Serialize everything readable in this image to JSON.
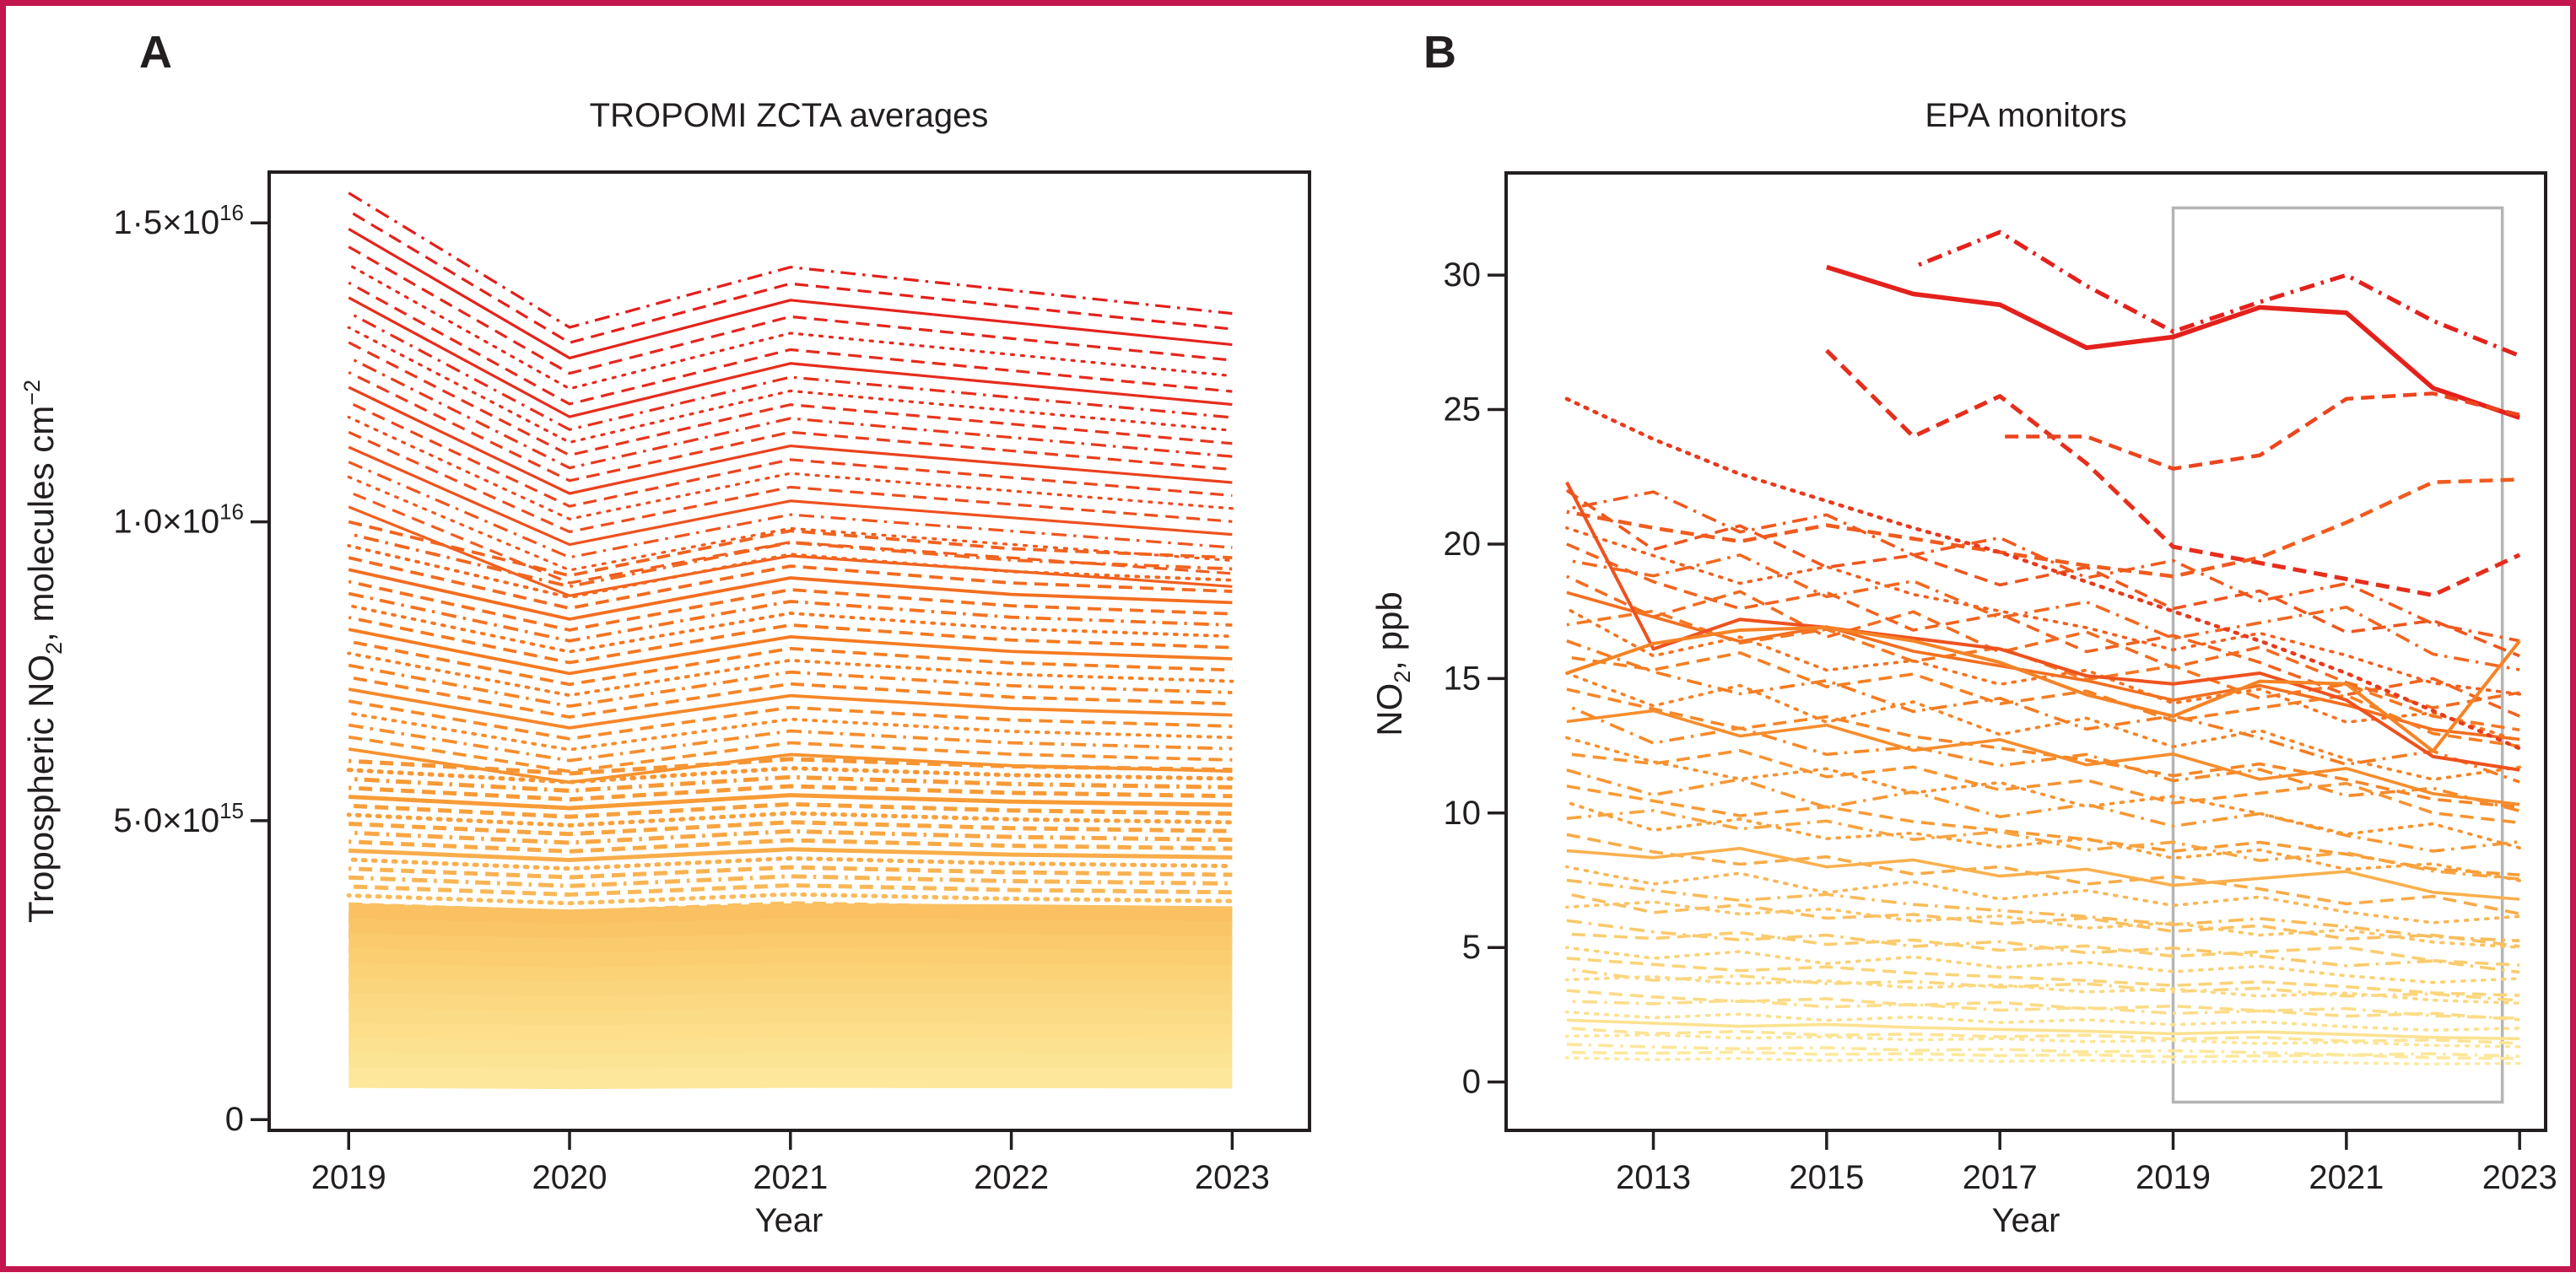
{
  "figure": {
    "panel_a_letter": "A",
    "panel_b_letter": "B",
    "border_color": "#c2164e",
    "background": "#ffffff",
    "text_color": "#231f20",
    "axis_color": "#231f20",
    "highlight_color": "#b5b5b5",
    "color_scale": [
      "#fdf0a8",
      "#fbcf72",
      "#f79d38",
      "#f57e22",
      "#f05a1e",
      "#e6301d",
      "#e31a1c"
    ]
  },
  "chart_data": [
    {
      "id": "panel-a",
      "type": "line",
      "title": "TROPOMI ZCTA averages",
      "xlabel": "Year",
      "ylabel_parts": [
        {
          "t": "Tropospheric NO"
        },
        {
          "t": "2",
          "style": "sub"
        },
        {
          "t": ", molecules cm"
        },
        {
          "t": "−2",
          "style": "sup"
        }
      ],
      "y_value_unit": "values in units of 1e15 molecules cm-2",
      "x": [
        2019,
        2020,
        2021,
        2022,
        2023
      ],
      "xlim": [
        2018.64,
        2023.35
      ],
      "ylim": [
        -0.18,
        15.85
      ],
      "x_ticks": [
        2019,
        2020,
        2021,
        2022,
        2023
      ],
      "y_ticks": [
        {
          "v": 15,
          "t": "1·5×10",
          "sup": "16"
        },
        {
          "v": 10,
          "t": "1·0×10",
          "sup": "16"
        },
        {
          "v": 5,
          "t": "5·0×10",
          "sup": "15"
        },
        {
          "v": 0,
          "t": "0"
        }
      ],
      "grid": false,
      "legend": "none",
      "color_by": "2019 value",
      "color_domain": [
        0,
        16
      ],
      "shapes": {
        "deep": [
          1.0,
          0.855,
          0.92,
          0.895,
          0.87
        ],
        "mid": [
          1.0,
          0.91,
          0.985,
          0.955,
          0.94
        ],
        "flat": [
          1.0,
          0.965,
          1.005,
          0.985,
          0.975
        ],
        "band": [
          1.0,
          0.97,
          1.0,
          0.995,
          0.985
        ]
      },
      "series": [
        [
          15.5,
          "deep",
          "dashdot"
        ],
        [
          15.2,
          "deep",
          "dashed"
        ],
        [
          14.9,
          "deep",
          "solid"
        ],
        [
          14.6,
          "deep",
          "dashed"
        ],
        [
          14.3,
          "deep",
          "dotted"
        ],
        [
          14.0,
          "deep",
          "dashed"
        ],
        [
          13.75,
          "deep",
          "solid"
        ],
        [
          13.5,
          "deep",
          "dashdot"
        ],
        [
          13.25,
          "deep",
          "dotted"
        ],
        [
          13.0,
          "deep",
          "dashed"
        ],
        [
          12.75,
          "deep",
          "dashdot"
        ],
        [
          12.5,
          "deep",
          "dashed"
        ],
        [
          12.25,
          "deep",
          "solid"
        ],
        [
          12.0,
          "deep",
          "dashed"
        ],
        [
          11.75,
          "deep",
          "dotted"
        ],
        [
          11.5,
          "deep",
          "dashed"
        ],
        [
          11.25,
          "deep",
          "solid"
        ],
        [
          11.0,
          "deep",
          "dashdot"
        ],
        [
          10.75,
          "deep",
          "dotted"
        ],
        [
          10.5,
          "deep",
          "dashed"
        ],
        [
          10.25,
          "deep",
          "solid"
        ],
        [
          10.0,
          "mid",
          "dashed"
        ],
        [
          9.8,
          "mid",
          "dashdot"
        ],
        [
          9.6,
          "mid",
          "dotted"
        ],
        [
          9.4,
          "mid",
          "dashed"
        ],
        [
          9.2,
          "mid",
          "solid"
        ],
        [
          9.0,
          "mid",
          "dashed"
        ],
        [
          8.8,
          "mid",
          "dashdot"
        ],
        [
          8.6,
          "mid",
          "dotted"
        ],
        [
          8.4,
          "mid",
          "dashed"
        ],
        [
          8.2,
          "mid",
          "solid"
        ],
        [
          8.0,
          "mid",
          "dashed"
        ],
        [
          7.8,
          "mid",
          "dotted"
        ],
        [
          7.6,
          "mid",
          "dashdot"
        ],
        [
          7.4,
          "mid",
          "dashed"
        ],
        [
          7.2,
          "mid",
          "solid"
        ],
        [
          7.0,
          "mid",
          "dashed"
        ],
        [
          6.8,
          "mid",
          "dotted"
        ],
        [
          6.6,
          "mid",
          "dashdot"
        ],
        [
          6.4,
          "mid",
          "dashed"
        ],
        [
          6.2,
          "mid",
          "solid"
        ],
        [
          6.0,
          "flat",
          "dashed"
        ],
        [
          5.85,
          "flat",
          "dotted"
        ],
        [
          5.7,
          "flat",
          "dashdot"
        ],
        [
          5.55,
          "flat",
          "dashed"
        ],
        [
          5.4,
          "flat",
          "solid"
        ],
        [
          5.25,
          "flat",
          "dashed"
        ],
        [
          5.1,
          "flat",
          "dotted"
        ],
        [
          4.95,
          "flat",
          "dashed"
        ],
        [
          4.8,
          "flat",
          "dashdot"
        ],
        [
          4.65,
          "flat",
          "dashed"
        ],
        [
          4.5,
          "flat",
          "solid"
        ],
        [
          4.35,
          "flat",
          "dotted"
        ],
        [
          4.2,
          "flat",
          "dashed"
        ],
        [
          4.05,
          "flat",
          "dashdot"
        ],
        [
          3.9,
          "flat",
          "dashed"
        ],
        [
          3.75,
          "flat",
          "dotted"
        ],
        [
          3.6,
          "flat",
          "dashed"
        ],
        [
          3.45,
          "band",
          "solid"
        ],
        [
          3.2,
          "band",
          "solid"
        ],
        [
          2.95,
          "band",
          "solid"
        ],
        [
          2.7,
          "band",
          "solid"
        ],
        [
          2.45,
          "band",
          "solid"
        ],
        [
          2.2,
          "band",
          "solid"
        ],
        [
          1.95,
          "band",
          "solid"
        ],
        [
          1.7,
          "band",
          "solid"
        ],
        [
          1.45,
          "band",
          "solid"
        ],
        [
          1.2,
          "band",
          "solid"
        ],
        [
          0.95,
          "band",
          "solid"
        ],
        [
          0.7,
          "band",
          "solid"
        ]
      ]
    },
    {
      "id": "panel-b",
      "type": "line",
      "title": "EPA monitors",
      "xlabel": "Year",
      "ylabel_parts": [
        {
          "t": "NO"
        },
        {
          "t": "2",
          "style": "sub"
        },
        {
          "t": ", ppb"
        }
      ],
      "y_value_unit": "ppb",
      "x": [
        2012,
        2013,
        2014,
        2015,
        2016,
        2017,
        2018,
        2019,
        2020,
        2021,
        2022,
        2023
      ],
      "xlim": [
        2011.3,
        2023.3
      ],
      "ylim": [
        -1.8,
        33.8
      ],
      "x_ticks": [
        2013,
        2015,
        2017,
        2019,
        2021,
        2023
      ],
      "y_ticks": [
        {
          "v": 30,
          "t": "30"
        },
        {
          "v": 25,
          "t": "25"
        },
        {
          "v": 20,
          "t": "20"
        },
        {
          "v": 15,
          "t": "15"
        },
        {
          "v": 10,
          "t": "10"
        },
        {
          "v": 5,
          "t": "5"
        },
        {
          "v": 0,
          "t": "0"
        }
      ],
      "grid": false,
      "legend": "none",
      "color_by": "2012 value",
      "color_domain": [
        0,
        32
      ],
      "highlight_box": {
        "x0": 2019,
        "x1": 2022.8,
        "y0": -0.75,
        "y1": 32.5
      },
      "shapes": {
        "s1": [
          1.0,
          0.95,
          0.9,
          0.93,
          0.88,
          0.85,
          0.82,
          0.78,
          0.81,
          0.77,
          0.72,
          0.7
        ],
        "s2": [
          1.0,
          0.9,
          0.94,
          0.87,
          0.89,
          0.84,
          0.87,
          0.8,
          0.83,
          0.76,
          0.78,
          0.72
        ],
        "s3": [
          1.0,
          1.03,
          0.96,
          0.99,
          0.92,
          0.95,
          0.88,
          0.91,
          0.84,
          0.87,
          0.8,
          0.77
        ],
        "s4": [
          1.0,
          0.93,
          0.88,
          0.91,
          0.84,
          0.87,
          0.8,
          0.83,
          0.78,
          0.72,
          0.75,
          0.68
        ],
        "s5": [
          1.0,
          0.97,
          1.01,
          0.93,
          0.96,
          0.89,
          0.92,
          0.85,
          0.88,
          0.91,
          0.82,
          0.79
        ],
        "s6": [
          1.0,
          0.92,
          0.97,
          0.88,
          0.93,
          0.85,
          0.89,
          0.82,
          0.86,
          0.79,
          0.74,
          0.77
        ]
      },
      "specials": [
        {
          "start": 2016,
          "y": [
            30.3,
            31.6,
            29.6,
            27.9,
            29.0,
            30.0,
            28.3,
            27.0
          ],
          "dash": "dashdot",
          "w": 5
        },
        {
          "start": 2015,
          "y": [
            30.3,
            29.3,
            28.9,
            27.3,
            27.7,
            28.8,
            28.6,
            25.8,
            24.7
          ],
          "dash": "solid",
          "w": 5.5
        },
        {
          "start": 2015,
          "y": [
            27.2,
            24.0,
            25.5,
            23.0,
            19.9,
            19.3,
            18.7,
            18.1,
            19.6
          ],
          "dash": "dashed",
          "w": 5
        },
        {
          "start": 2017,
          "y": [
            24.0,
            24.0,
            22.8,
            23.3,
            25.4,
            25.6,
            24.8
          ],
          "dash": "dashed",
          "w": 4.5
        },
        {
          "start": 2012,
          "y": [
            21.2,
            20.6,
            20.1,
            20.7,
            20.2,
            19.7,
            19.2,
            18.8,
            19.5,
            20.8,
            22.3,
            22.4
          ],
          "dash": "dashed",
          "w": 4.5
        },
        {
          "start": 2012,
          "y": [
            25.4,
            23.9,
            22.6,
            21.6,
            20.6,
            19.7,
            18.6,
            17.5,
            16.4,
            15.2,
            13.8,
            12.4
          ],
          "dash": "dotted",
          "w": 4.5
        },
        {
          "start": 2012,
          "y": [
            22.3,
            16.1,
            17.2,
            16.9,
            16.5,
            16.1,
            15.1,
            14.8,
            15.2,
            14.2,
            12.1,
            11.6
          ],
          "dash": "solid",
          "w": 4
        },
        {
          "start": 2012,
          "y": [
            15.2,
            16.3,
            16.8,
            16.9,
            16.4,
            15.6,
            14.4,
            13.6,
            14.9,
            14.8,
            12.3,
            16.4
          ],
          "dash": "solid",
          "w": 4
        }
      ],
      "series": [
        [
          22.0,
          "s2",
          "dashed"
        ],
        [
          21.3,
          "s3",
          "dashdot"
        ],
        [
          20.6,
          "s1",
          "dotted"
        ],
        [
          20.0,
          "s4",
          "dashed"
        ],
        [
          19.4,
          "s5",
          "dashdot"
        ],
        [
          18.8,
          "s6",
          "dashed"
        ],
        [
          18.2,
          "s1",
          "solid"
        ],
        [
          17.6,
          "s2",
          "dotted"
        ],
        [
          17.0,
          "s3",
          "dashed"
        ],
        [
          16.4,
          "s4",
          "dashdot"
        ],
        [
          15.8,
          "s5",
          "dashed"
        ],
        [
          15.2,
          "s6",
          "dotted"
        ],
        [
          14.6,
          "s1",
          "dashed"
        ],
        [
          14.0,
          "s2",
          "dashdot"
        ],
        [
          13.4,
          "s3",
          "solid"
        ],
        [
          12.8,
          "s4",
          "dotted"
        ],
        [
          12.2,
          "s5",
          "dashed"
        ],
        [
          11.6,
          "s6",
          "dashdot"
        ],
        [
          11.0,
          "s1",
          "dashed"
        ],
        [
          10.4,
          "s2",
          "dotted"
        ],
        [
          9.8,
          "s3",
          "dashdot"
        ],
        [
          9.2,
          "s4",
          "dashed"
        ],
        [
          8.6,
          "s5",
          "solid"
        ],
        [
          8.0,
          "s6",
          "dotted"
        ],
        [
          7.5,
          "s1",
          "dashdot"
        ],
        [
          7.0,
          "s2",
          "dashed"
        ],
        [
          6.5,
          "s3",
          "dotted"
        ],
        [
          6.0,
          "s4",
          "dashdot"
        ],
        [
          5.5,
          "s5",
          "dashed"
        ],
        [
          5.0,
          "s6",
          "dotted"
        ],
        [
          4.6,
          "s1",
          "dashed"
        ],
        [
          4.2,
          "s2",
          "dashdot"
        ],
        [
          3.8,
          "s3",
          "dotted"
        ],
        [
          3.4,
          "s4",
          "dashed"
        ],
        [
          3.0,
          "s5",
          "dashdot"
        ],
        [
          2.6,
          "s6",
          "dotted"
        ],
        [
          2.3,
          "s1",
          "solid"
        ],
        [
          2.0,
          "s2",
          "dashed"
        ],
        [
          1.7,
          "s3",
          "dotted"
        ],
        [
          1.4,
          "s4",
          "dashdot"
        ],
        [
          1.1,
          "s5",
          "dashed"
        ],
        [
          0.9,
          "s6",
          "dotted"
        ]
      ]
    }
  ]
}
